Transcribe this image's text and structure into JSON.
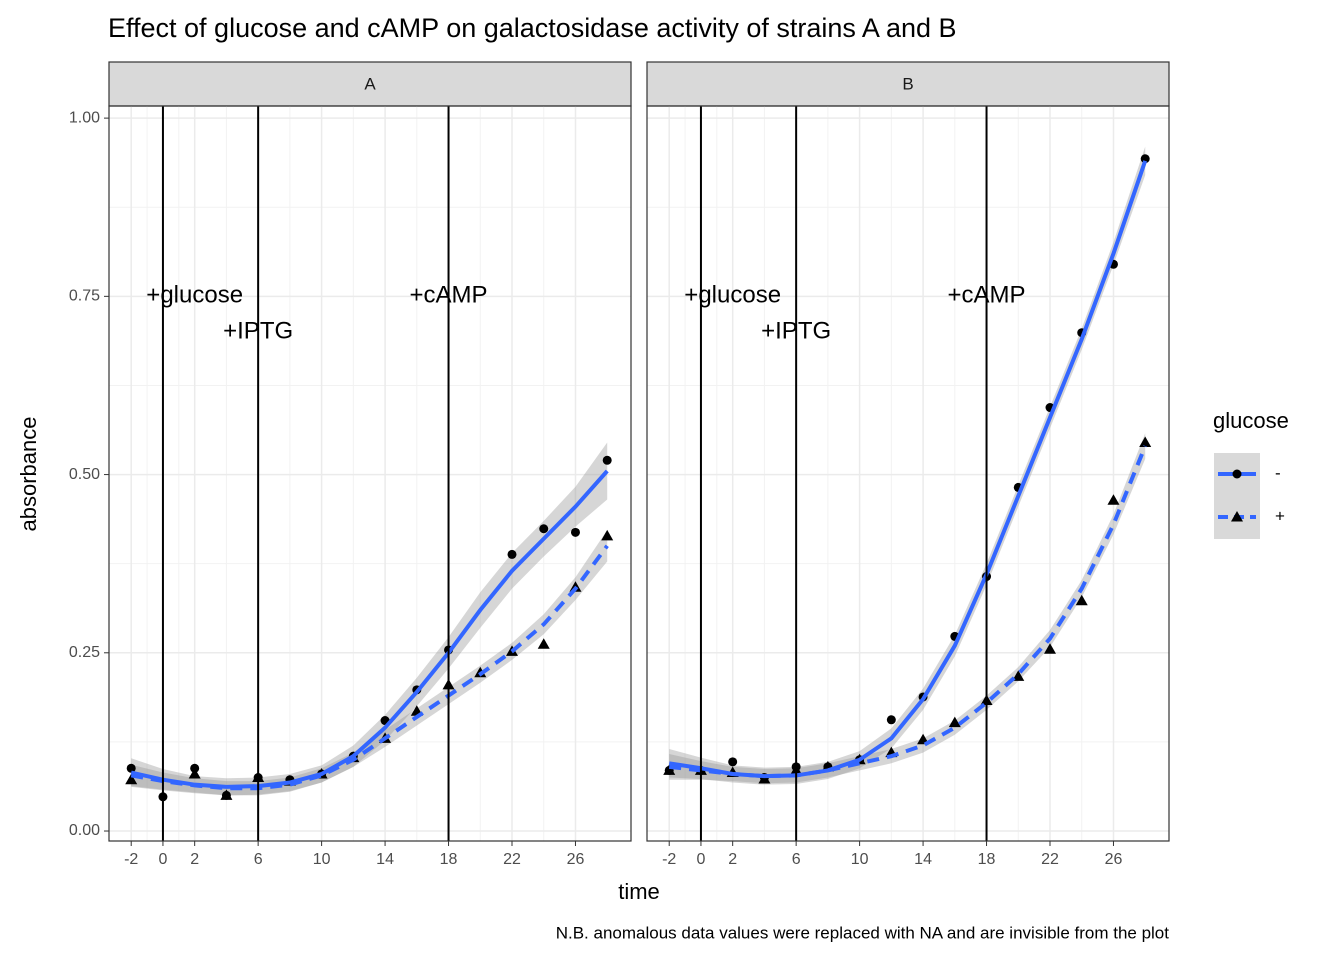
{
  "chart_data": {
    "type": "line",
    "title": "Effect of glucose and cAMP on galactosidase activity of strains A and B",
    "x_label": "time",
    "y_label": "absorbance",
    "caption": "N.B. anomalous data values were replaced with NA and are invisible from the plot",
    "legend_title": "glucose",
    "xlim": [
      -3.4,
      29.5
    ],
    "xticks": [
      -2,
      0,
      2,
      6,
      10,
      14,
      18,
      22,
      26
    ],
    "ylim": [
      -0.014,
      1.017
    ],
    "yticks": [
      {
        "value": 0,
        "label": "0.00"
      },
      {
        "value": 0.25,
        "label": "0.25"
      },
      {
        "value": 0.5,
        "label": "0.50"
      },
      {
        "value": 0.75,
        "label": "0.75"
      },
      {
        "value": 1,
        "label": "1.00"
      }
    ],
    "grid": true,
    "color": "#3366ff",
    "vlines": [
      0,
      6,
      18
    ],
    "annotations": [
      {
        "label": "+glucose",
        "x": 2,
        "y": 0.75
      },
      {
        "label": "+IPTG",
        "x": 6,
        "y": 0.7
      },
      {
        "label": "+cAMP",
        "x": 18,
        "y": 0.75
      }
    ],
    "x": [
      -2,
      0,
      2,
      4,
      6,
      8,
      10,
      12,
      14,
      16,
      18,
      20,
      22,
      24,
      26,
      28
    ],
    "panels": [
      {
        "name": "A",
        "series": [
          {
            "name": "-",
            "marker": "circle",
            "dash": "solid",
            "values": [
              0.088,
              0.048,
              0.088,
              0.05,
              0.075,
              0.072,
              0.08,
              0.105,
              0.155,
              0.198,
              0.254,
              null,
              0.388,
              0.424,
              0.419,
              0.52
            ],
            "fit": [
              0.082,
              0.072,
              0.065,
              0.062,
              0.063,
              0.068,
              0.08,
              0.105,
              0.145,
              0.195,
              0.25,
              0.31,
              0.365,
              0.41,
              0.455,
              0.505
            ],
            "se": [
              0.02,
              0.015,
              0.012,
              0.012,
              0.012,
              0.012,
              0.012,
              0.015,
              0.018,
              0.02,
              0.022,
              0.025,
              0.025,
              0.025,
              0.028,
              0.04
            ]
          },
          {
            "name": "+",
            "marker": "triangle",
            "dash": "dashed",
            "values": [
              0.072,
              null,
              0.08,
              0.05,
              0.075,
              0.07,
              0.08,
              0.103,
              0.13,
              0.168,
              0.205,
              0.222,
              0.252,
              0.262,
              0.342,
              0.414
            ],
            "fit": [
              0.078,
              0.07,
              0.064,
              0.06,
              0.06,
              0.065,
              0.078,
              0.1,
              0.13,
              0.16,
              0.19,
              0.22,
              0.252,
              0.29,
              0.34,
              0.4
            ],
            "se": [
              0.015,
              0.012,
              0.01,
              0.01,
              0.01,
              0.01,
              0.01,
              0.01,
              0.012,
              0.012,
              0.012,
              0.012,
              0.012,
              0.014,
              0.016,
              0.022
            ]
          }
        ]
      },
      {
        "name": "B",
        "series": [
          {
            "name": "-",
            "marker": "circle",
            "dash": "solid",
            "values": [
              0.085,
              0.085,
              0.097,
              0.075,
              0.09,
              0.09,
              0.1,
              0.156,
              0.188,
              0.273,
              0.357,
              0.482,
              0.594,
              0.699,
              0.795,
              0.943
            ],
            "fit": [
              0.095,
              0.088,
              0.08,
              0.077,
              0.078,
              0.085,
              0.1,
              0.13,
              0.185,
              0.26,
              0.36,
              0.47,
              0.58,
              0.69,
              0.81,
              0.94
            ],
            "se": [
              0.02,
              0.015,
              0.012,
              0.012,
              0.012,
              0.012,
              0.012,
              0.014,
              0.015,
              0.015,
              0.015,
              0.015,
              0.015,
              0.015,
              0.016,
              0.02
            ]
          },
          {
            "name": "+",
            "marker": "triangle",
            "dash": "dashed",
            "values": [
              0.085,
              0.085,
              0.082,
              0.073,
              0.085,
              0.09,
              0.1,
              0.11,
              0.128,
              0.152,
              0.183,
              0.217,
              0.255,
              0.323,
              0.464,
              0.545
            ],
            "fit": [
              0.09,
              0.085,
              0.08,
              0.077,
              0.078,
              0.085,
              0.095,
              0.105,
              0.12,
              0.145,
              0.18,
              0.22,
              0.27,
              0.34,
              0.43,
              0.54
            ],
            "se": [
              0.018,
              0.013,
              0.01,
              0.01,
              0.01,
              0.01,
              0.01,
              0.01,
              0.01,
              0.01,
              0.01,
              0.01,
              0.012,
              0.012,
              0.014,
              0.018
            ]
          }
        ]
      }
    ]
  }
}
